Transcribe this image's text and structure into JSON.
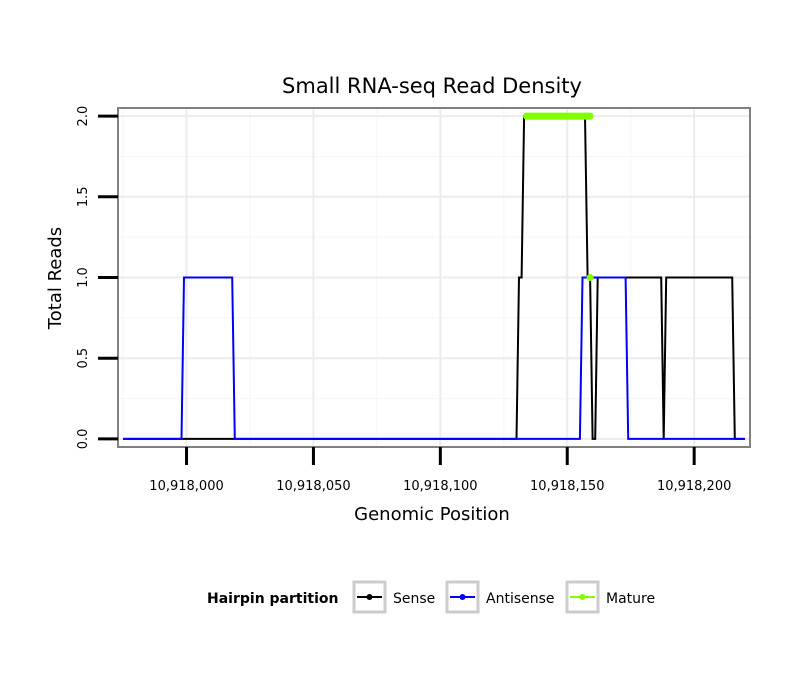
{
  "chart_data": {
    "type": "line",
    "title": "Small RNA-seq Read Density",
    "xlabel": "Genomic Position",
    "ylabel": "Total Reads",
    "xlim": [
      10917973,
      10918222
    ],
    "ylim": [
      -0.05,
      2.05
    ],
    "x_ticks": [
      10918000,
      10918050,
      10918100,
      10918150,
      10918200
    ],
    "x_tick_labels": [
      "10,918,000",
      "10,918,050",
      "10,918,100",
      "10,918,150",
      "10,918,200"
    ],
    "y_ticks": [
      0,
      0.5,
      1,
      1.5,
      2
    ],
    "y_tick_labels": [
      "0.0",
      "0.5",
      "1.0",
      "1.5",
      "2.0"
    ],
    "grid": true,
    "legend": {
      "title": "Hairpin partition",
      "position": "bottom",
      "entries": [
        "Sense",
        "Antisense",
        "Mature"
      ]
    },
    "series": [
      {
        "name": "Sense",
        "color": "#000000",
        "x": [
          10917975,
          10918130,
          10918131,
          10918132,
          10918133,
          10918157,
          10918158,
          10918159,
          10918160,
          10918161,
          10918162,
          10918187,
          10918188,
          10918189,
          10918215,
          10918216,
          10918220
        ],
        "y": [
          0,
          0,
          1,
          1,
          2,
          2,
          1,
          1,
          0,
          0,
          1,
          1,
          0,
          1,
          1,
          0,
          0
        ]
      },
      {
        "name": "Antisense",
        "color": "#0000ff",
        "x": [
          10917975,
          10917998,
          10917999,
          10918018,
          10918019,
          10918155,
          10918156,
          10918173,
          10918174,
          10918220
        ],
        "y": [
          0,
          0,
          1,
          1,
          0,
          0,
          1,
          1,
          0,
          0
        ]
      },
      {
        "name": "Mature",
        "color": "#7fff00",
        "x": [
          10918134,
          10918159
        ],
        "y": [
          2,
          2
        ],
        "extra_points": [
          {
            "x": 10918159,
            "y": 1
          }
        ]
      }
    ]
  }
}
